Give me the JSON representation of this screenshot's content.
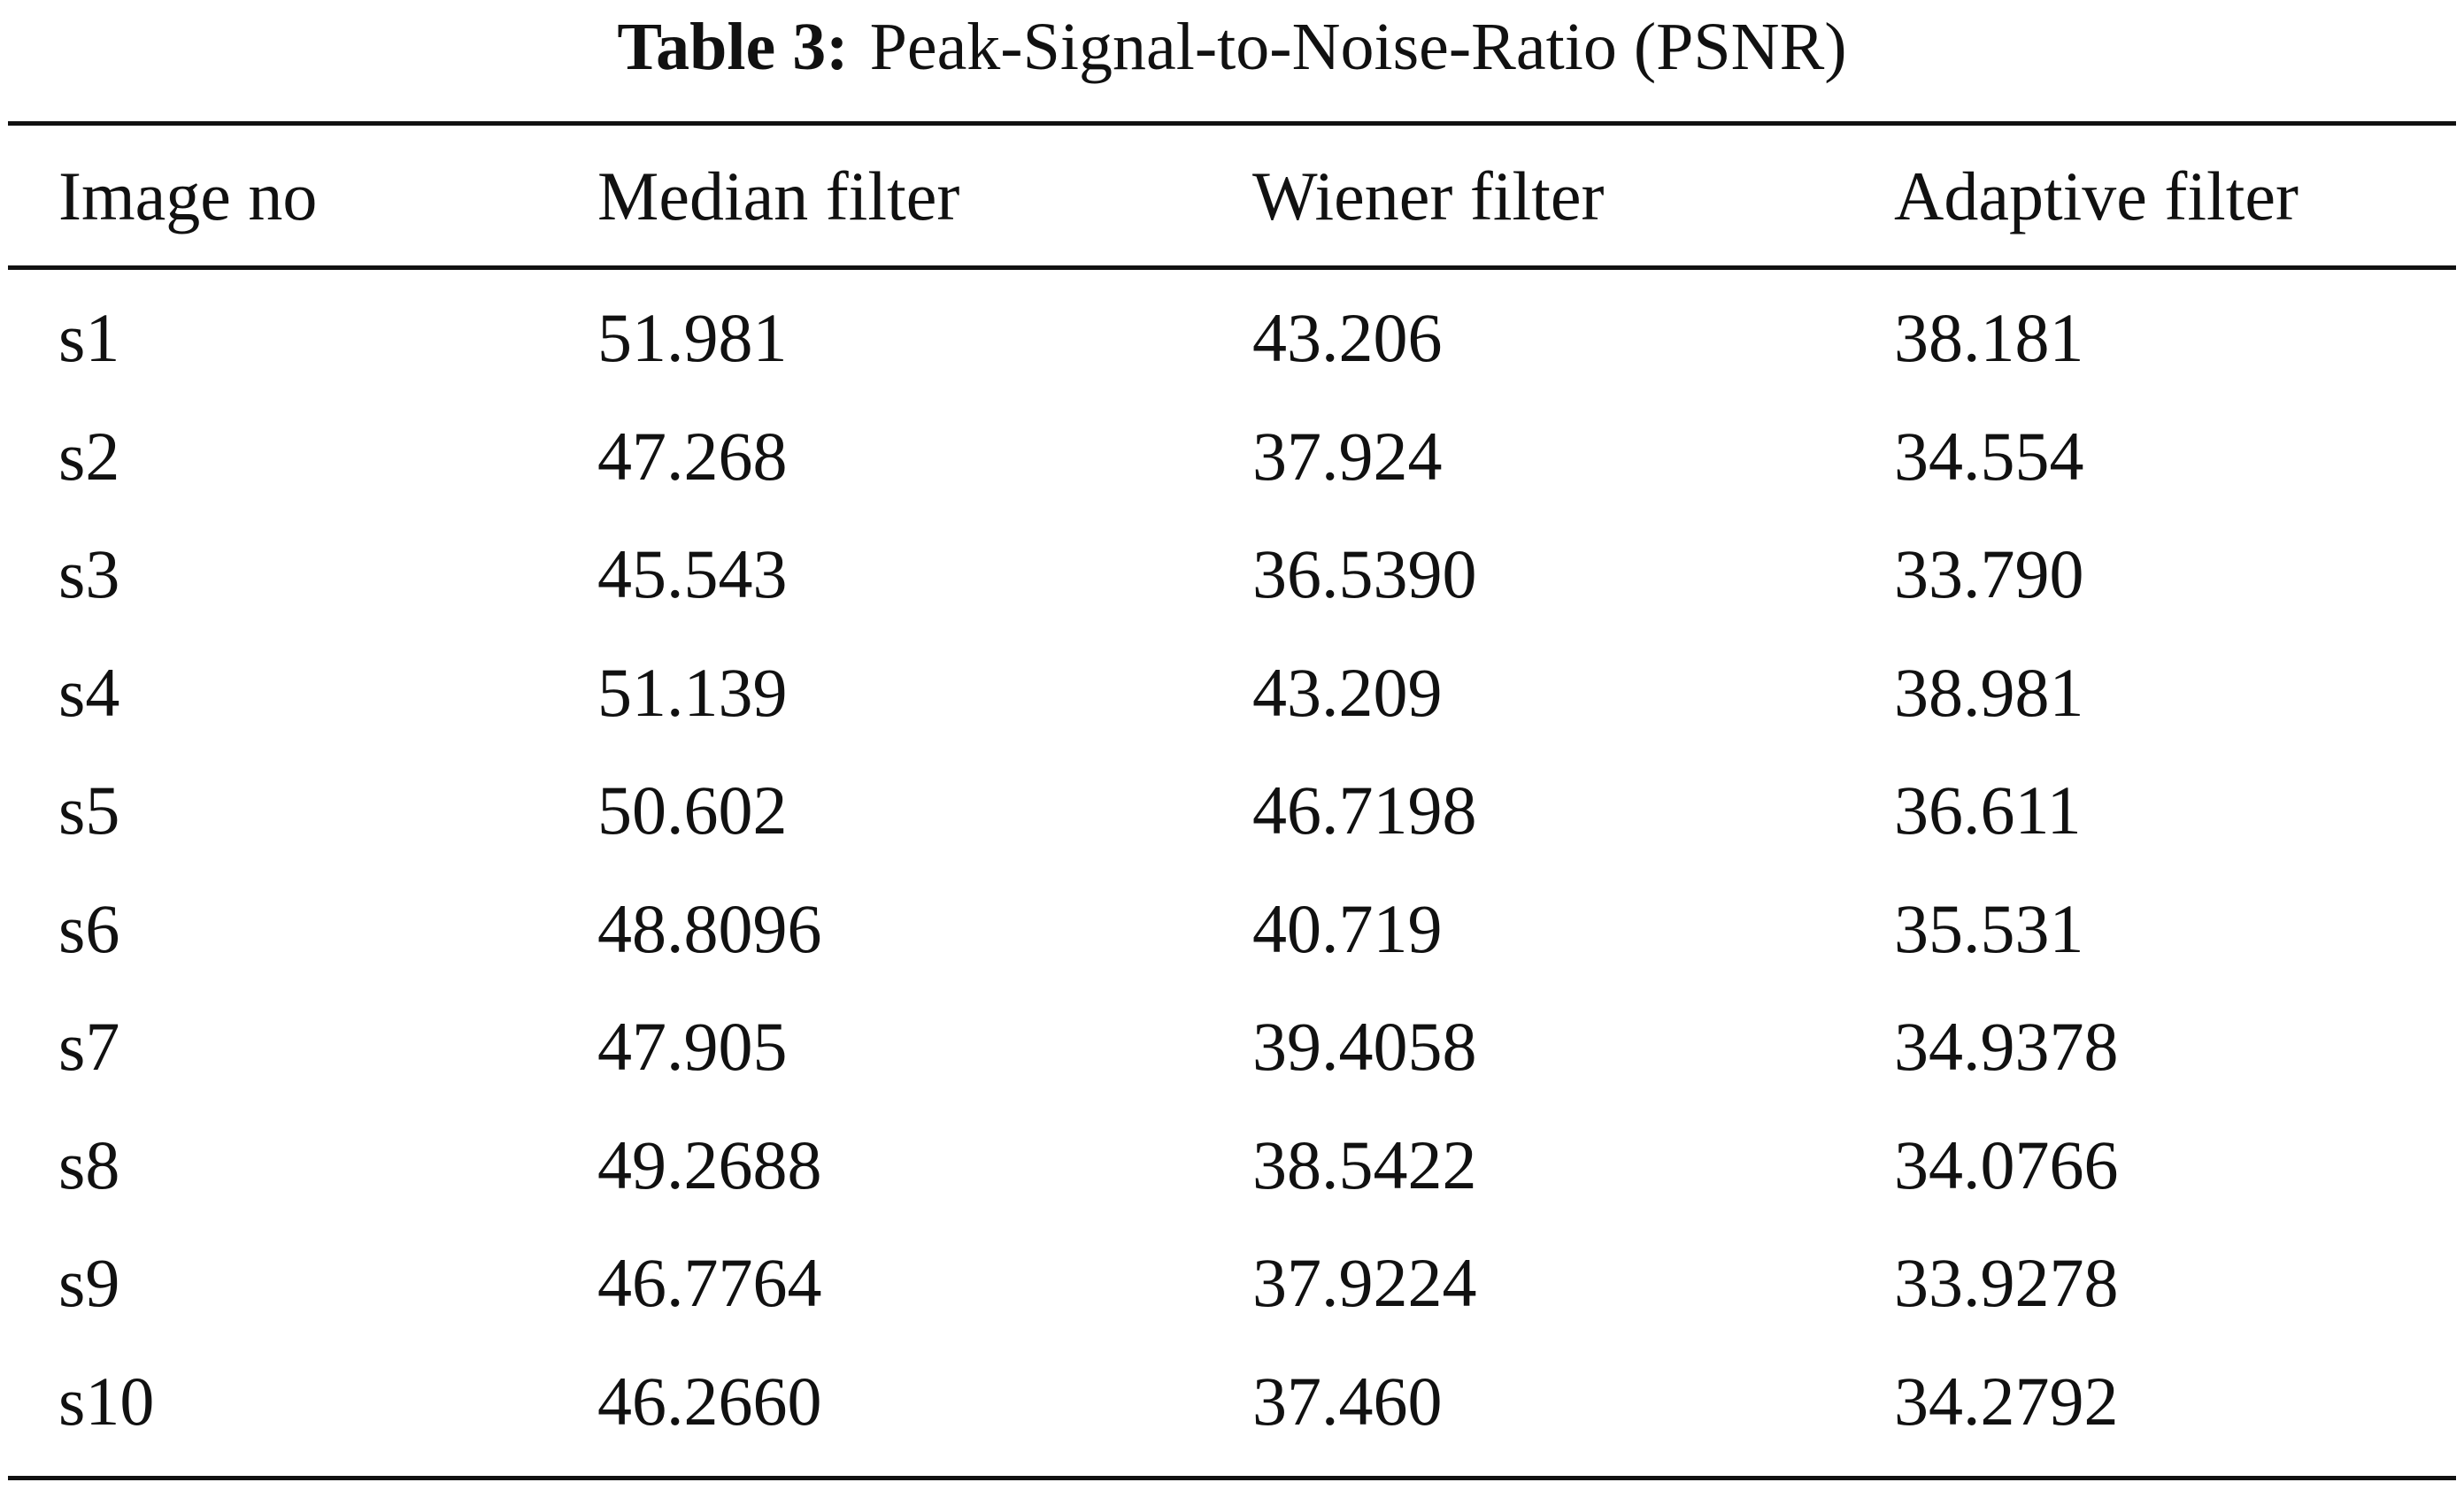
{
  "table": {
    "caption_label": "Table 3:",
    "caption": "Peak-Signal-to-Noise-Ratio (PSNR)",
    "header": [
      "Image no",
      "Median filter",
      "Wiener filter",
      "Adaptive filter"
    ],
    "rows": [
      [
        "s1",
        "51.981",
        "43.206",
        "38.181"
      ],
      [
        "s2",
        "47.268",
        "37.924",
        "34.554"
      ],
      [
        "s3",
        "45.543",
        "36.5390",
        "33.790"
      ],
      [
        "s4",
        "51.139",
        "43.209",
        "38.981"
      ],
      [
        "s5",
        "50.602",
        "46.7198",
        "36.611"
      ],
      [
        "s6",
        "48.8096",
        "40.719",
        "35.531"
      ],
      [
        "s7",
        "47.905",
        "39.4058",
        "34.9378"
      ],
      [
        "s8",
        "49.2688",
        "38.5422",
        "34.0766"
      ],
      [
        "s9",
        "46.7764",
        "37.9224",
        "33.9278"
      ],
      [
        "s10",
        "46.2660",
        "37.460",
        "34.2792"
      ]
    ]
  }
}
